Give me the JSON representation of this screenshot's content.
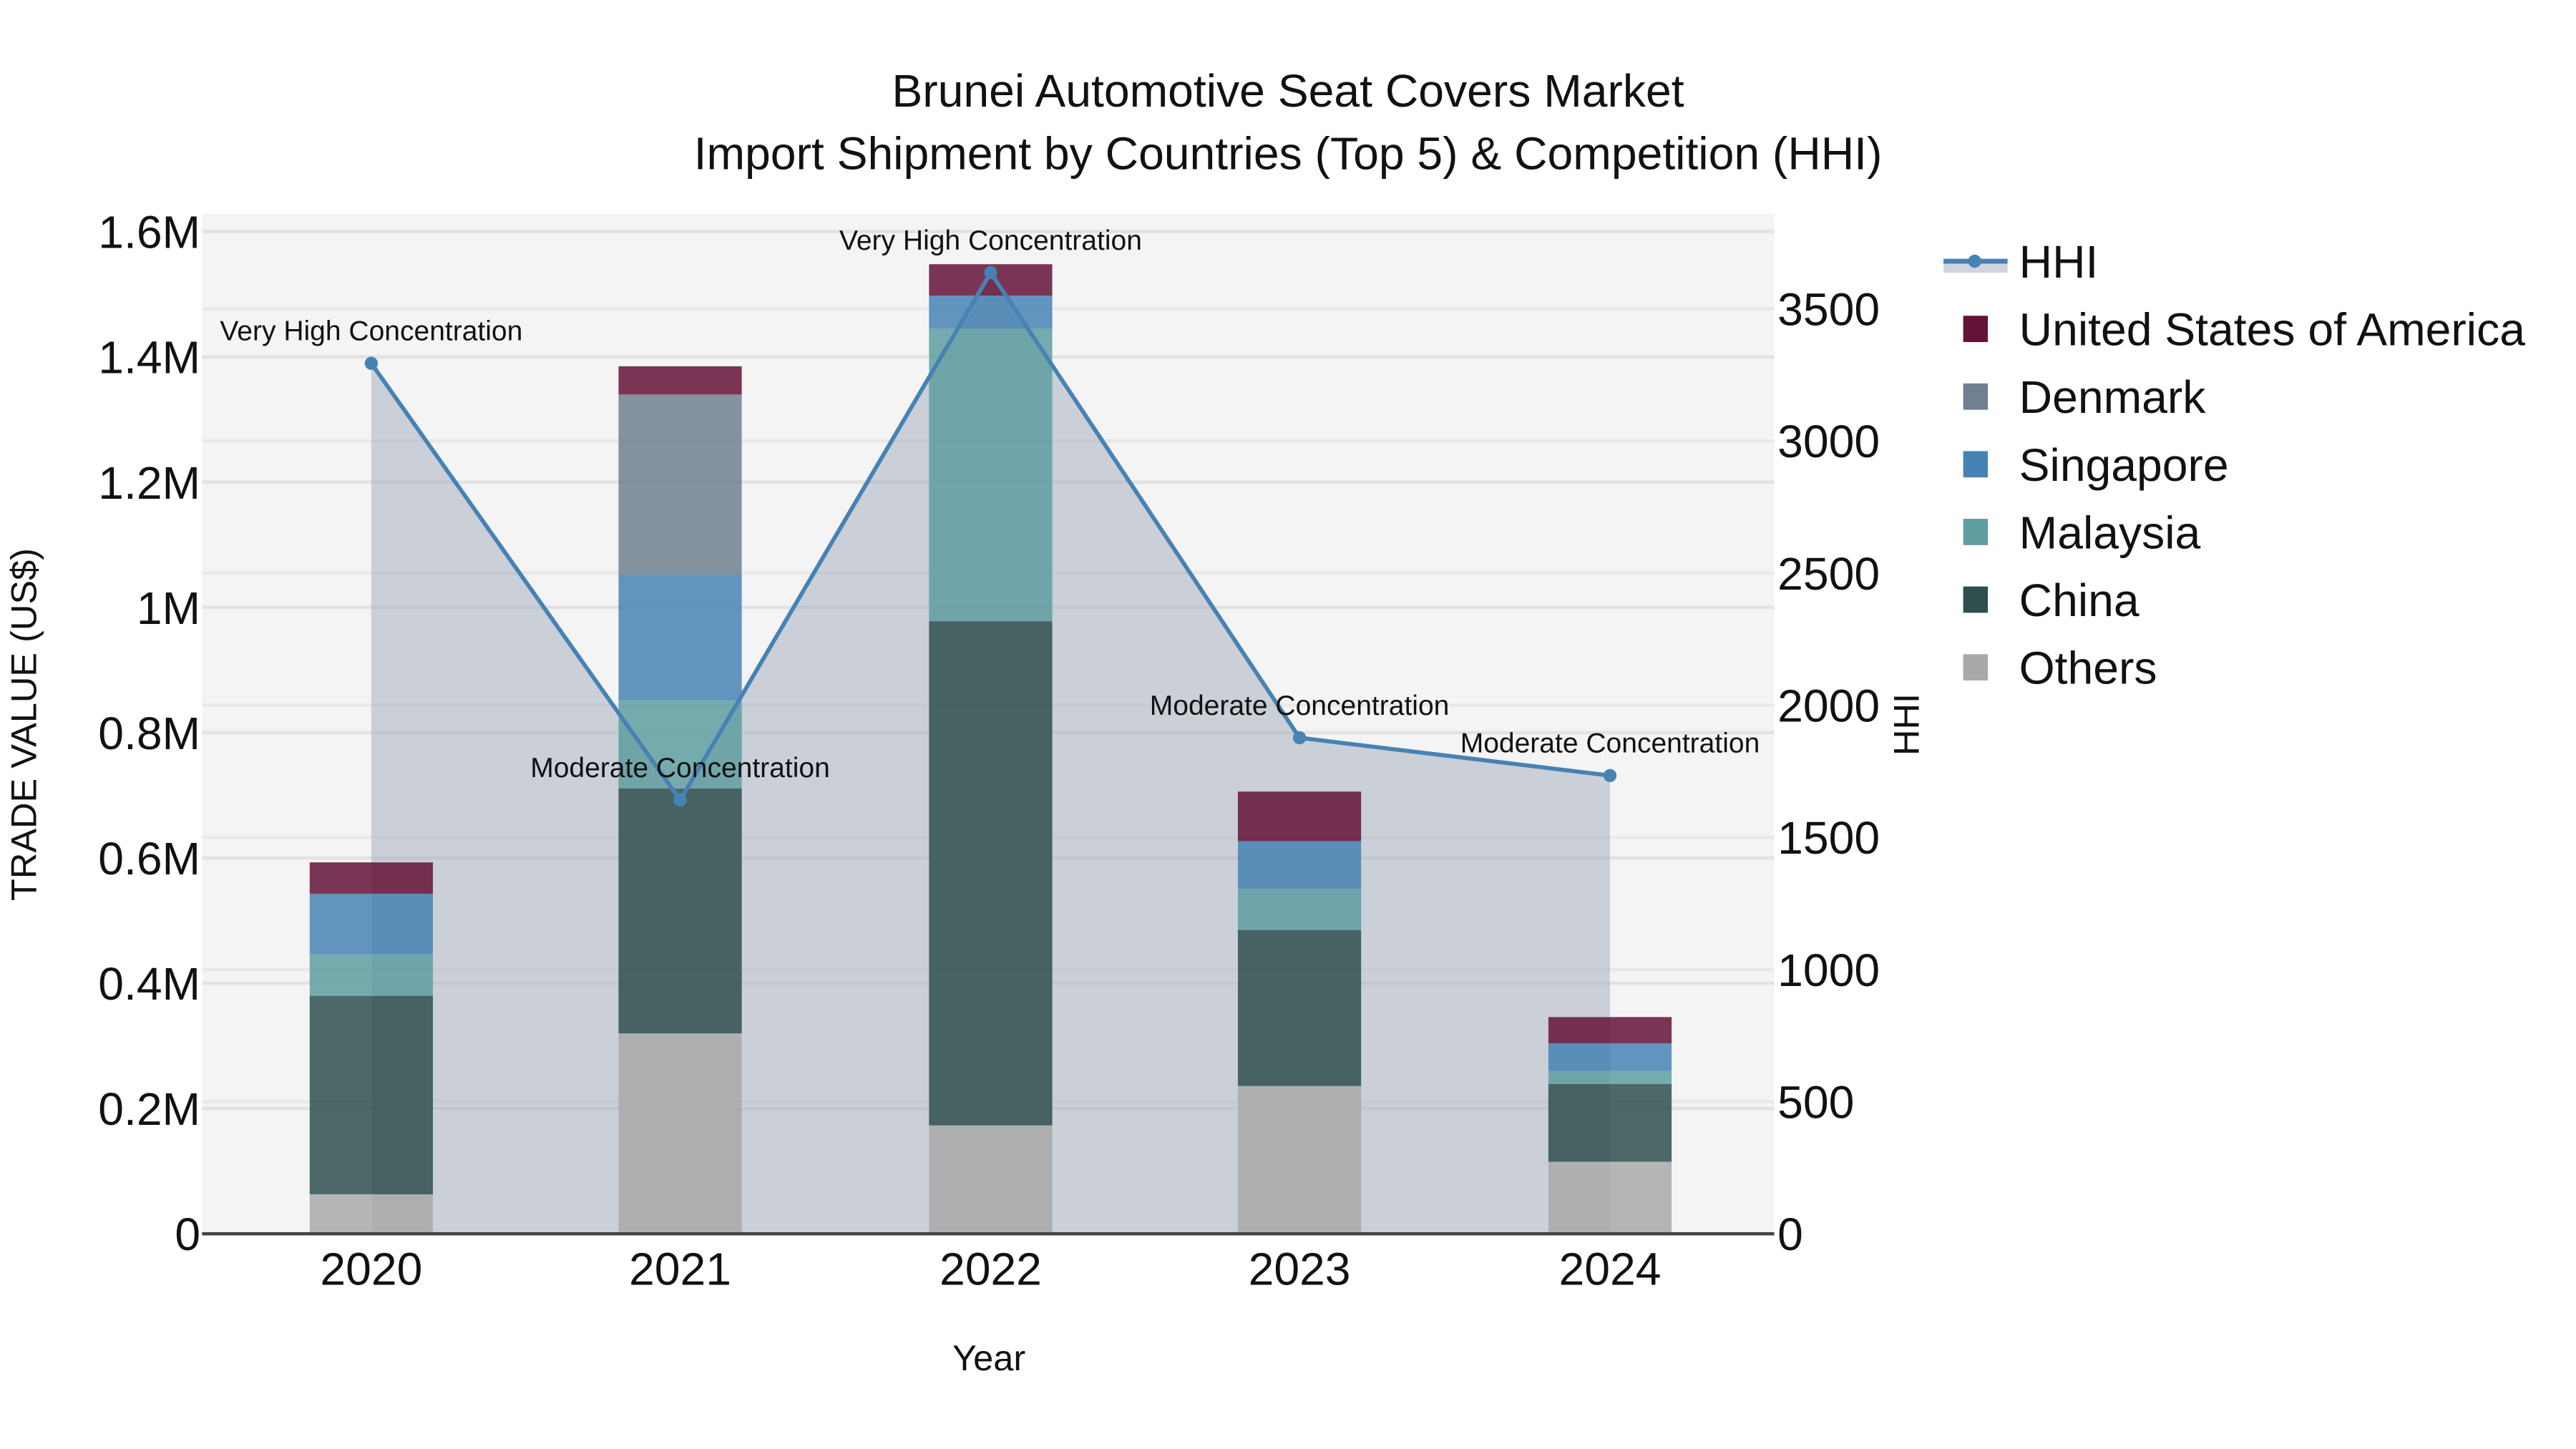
{
  "title": {
    "line1": "Brunei Automotive Seat Covers Market",
    "line2": "Import Shipment by Countries (Top 5) & Competition (HHI)"
  },
  "axes": {
    "x_label": "Year",
    "y_left_label": "TRADE VALUE (US$)",
    "y_right_label": "HHI",
    "y_left_ticks": [
      "0",
      "0.2M",
      "0.4M",
      "0.6M",
      "0.8M",
      "1M",
      "1.2M",
      "1.4M",
      "1.6M"
    ],
    "y_right_ticks": [
      "0",
      "500",
      "1000",
      "1500",
      "2000",
      "2500",
      "3000",
      "3500"
    ],
    "x_ticks": [
      "2020",
      "2021",
      "2022",
      "2023",
      "2024"
    ]
  },
  "legend": [
    {
      "name": "HHI",
      "color": "#4682b4",
      "type": "line"
    },
    {
      "name": "United States of America",
      "color": "#631336",
      "type": "bar"
    },
    {
      "name": "Denmark",
      "color": "#708090",
      "type": "bar"
    },
    {
      "name": "Singapore",
      "color": "#4682b4",
      "type": "bar"
    },
    {
      "name": "Malaysia",
      "color": "#5f9ea0",
      "type": "bar"
    },
    {
      "name": "China",
      "color": "#2f4f4f",
      "type": "bar"
    },
    {
      "name": "Others",
      "color": "#a9a9a9",
      "type": "bar"
    }
  ],
  "annotations": [
    "Very High Concentration",
    "Moderate Concentration",
    "Very High Concentration",
    "Moderate Concentration",
    "Moderate Concentration"
  ],
  "chart_data": {
    "type": "bar",
    "title": "Brunei Automotive Seat Covers Market - Import Shipment by Countries (Top 5) & Competition (HHI)",
    "xlabel": "Year",
    "ylabel": "TRADE VALUE (US$)",
    "y2label": "HHI",
    "categories": [
      "2020",
      "2021",
      "2022",
      "2023",
      "2024"
    ],
    "stacked": true,
    "ylim": [
      0,
      1600000
    ],
    "y2lim": [
      0,
      3800
    ],
    "series": [
      {
        "name": "Others",
        "color": "#a9a9a9",
        "values": [
          63000,
          320000,
          173000,
          236000,
          115000
        ]
      },
      {
        "name": "China",
        "color": "#2f4f4f",
        "values": [
          317000,
          391000,
          805000,
          249000,
          124000
        ]
      },
      {
        "name": "Malaysia",
        "color": "#5f9ea0",
        "values": [
          66000,
          141000,
          467000,
          66000,
          21000
        ]
      },
      {
        "name": "Singapore",
        "color": "#4682b4",
        "values": [
          97000,
          200000,
          53000,
          76000,
          44000
        ]
      },
      {
        "name": "Denmark",
        "color": "#708090",
        "values": [
          0,
          288000,
          0,
          0,
          0
        ]
      },
      {
        "name": "United States of America",
        "color": "#631336",
        "values": [
          50000,
          45000,
          50000,
          79000,
          42000
        ]
      }
    ],
    "line_series": {
      "name": "HHI",
      "axis": "right",
      "color": "#4682b4",
      "fill": "tozeroy",
      "values": [
        3294,
        1641,
        3637,
        1877,
        1734
      ],
      "labels": [
        "Very High Concentration",
        "Moderate Concentration",
        "Very High Concentration",
        "Moderate Concentration",
        "Moderate Concentration"
      ]
    },
    "grid": true,
    "legend_position": "right"
  }
}
